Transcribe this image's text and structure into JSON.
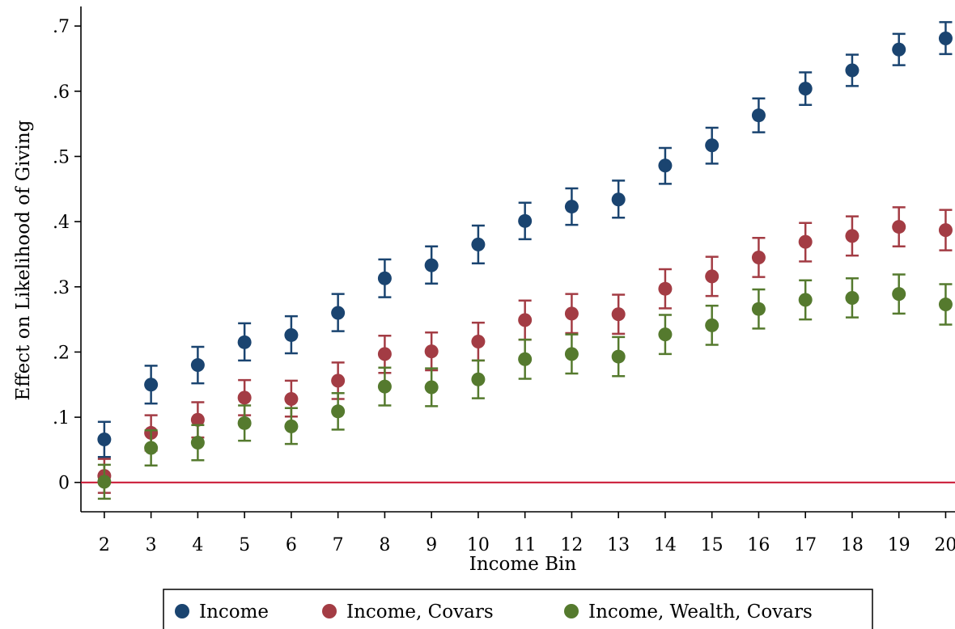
{
  "chart_data": {
    "type": "scatter",
    "title": "",
    "xlabel": "Income Bin",
    "ylabel": "Effect on Likelihood of Giving",
    "x": [
      2,
      3,
      4,
      5,
      6,
      7,
      8,
      9,
      10,
      11,
      12,
      13,
      14,
      15,
      16,
      17,
      18,
      19,
      20
    ],
    "xlim": [
      1.5,
      20.2
    ],
    "ylim": [
      -0.045,
      0.73
    ],
    "yticks": [
      0,
      0.1,
      0.2,
      0.3,
      0.4,
      0.5,
      0.6,
      0.7
    ],
    "ytick_labels": [
      "0",
      ".1",
      ".2",
      ".3",
      ".4",
      ".5",
      ".6",
      ".7"
    ],
    "xtick_labels": [
      "2",
      "3",
      "4",
      "5",
      "6",
      "7",
      "8",
      "9",
      "10",
      "11",
      "12",
      "13",
      "14",
      "15",
      "16",
      "17",
      "18",
      "19",
      "20"
    ],
    "reference_line": {
      "y": 0,
      "color": "#c8102e"
    },
    "grid": false,
    "legend_position": "bottom",
    "series": [
      {
        "name": "Income",
        "color": "#1a4470",
        "values": [
          0.066,
          0.15,
          0.18,
          0.215,
          0.226,
          0.26,
          0.313,
          0.333,
          0.365,
          0.401,
          0.423,
          0.434,
          0.486,
          0.517,
          0.563,
          0.604,
          0.632,
          0.664,
          0.681
        ],
        "lower": [
          0.039,
          0.121,
          0.152,
          0.187,
          0.198,
          0.232,
          0.284,
          0.305,
          0.336,
          0.373,
          0.395,
          0.406,
          0.458,
          0.489,
          0.537,
          0.579,
          0.608,
          0.64,
          0.657
        ],
        "upper": [
          0.093,
          0.179,
          0.208,
          0.244,
          0.255,
          0.289,
          0.342,
          0.362,
          0.394,
          0.429,
          0.451,
          0.463,
          0.513,
          0.544,
          0.589,
          0.629,
          0.656,
          0.688,
          0.706
        ]
      },
      {
        "name": "Income, Covars",
        "color": "#a33c44",
        "values": [
          0.01,
          0.076,
          0.096,
          0.13,
          0.128,
          0.156,
          0.197,
          0.201,
          0.216,
          0.249,
          0.259,
          0.258,
          0.297,
          0.316,
          0.345,
          0.369,
          0.378,
          0.392,
          0.387
        ],
        "lower": [
          -0.016,
          0.049,
          0.069,
          0.103,
          0.101,
          0.128,
          0.168,
          0.172,
          0.187,
          0.219,
          0.229,
          0.228,
          0.267,
          0.286,
          0.315,
          0.339,
          0.348,
          0.362,
          0.356
        ],
        "upper": [
          0.036,
          0.103,
          0.123,
          0.157,
          0.156,
          0.184,
          0.225,
          0.23,
          0.245,
          0.279,
          0.289,
          0.288,
          0.327,
          0.346,
          0.375,
          0.398,
          0.408,
          0.422,
          0.418
        ]
      },
      {
        "name": "Income, Wealth, Covars",
        "color": "#557a2e",
        "values": [
          0.001,
          0.053,
          0.061,
          0.091,
          0.086,
          0.109,
          0.147,
          0.146,
          0.158,
          0.189,
          0.197,
          0.193,
          0.227,
          0.241,
          0.266,
          0.28,
          0.283,
          0.289,
          0.273
        ],
        "lower": [
          -0.025,
          0.026,
          0.034,
          0.064,
          0.059,
          0.081,
          0.118,
          0.117,
          0.129,
          0.159,
          0.167,
          0.163,
          0.197,
          0.211,
          0.236,
          0.25,
          0.253,
          0.259,
          0.242
        ],
        "upper": [
          0.027,
          0.08,
          0.088,
          0.118,
          0.114,
          0.137,
          0.176,
          0.175,
          0.187,
          0.219,
          0.227,
          0.223,
          0.257,
          0.271,
          0.296,
          0.31,
          0.313,
          0.319,
          0.304
        ]
      }
    ]
  }
}
